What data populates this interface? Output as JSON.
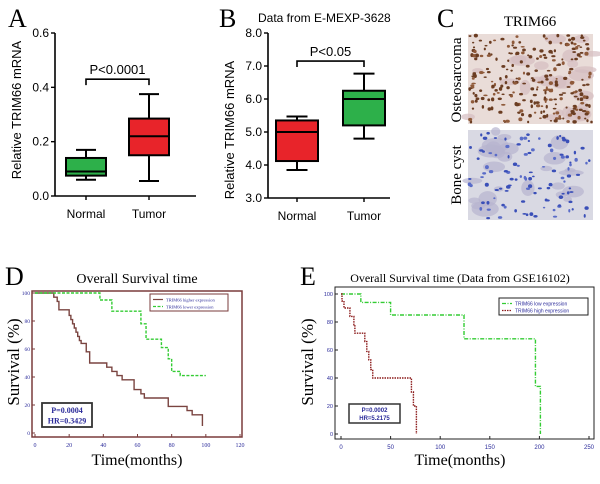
{
  "panel_labels": {
    "a": "A",
    "b": "B",
    "c": "C",
    "d": "D",
    "e": "E"
  },
  "colors": {
    "green": "#2db04a",
    "red": "#e8242a",
    "brown": "#7a4440",
    "km_green": "#33cc33",
    "km_red": "#8b1a1a",
    "km_text": "#2b2b9a",
    "frame": "#7a3b3b"
  },
  "chart_data": [
    {
      "id": "A",
      "type": "box",
      "title": "",
      "ylabel": "Relative TRIM66 mRNA",
      "ylim": [
        0,
        0.6
      ],
      "yticks": [
        "0.0",
        "0.2",
        "0.4",
        "0.6"
      ],
      "ytick_values": [
        0,
        0.2,
        0.4,
        0.6
      ],
      "categories": [
        "Normal",
        "Tumor"
      ],
      "boxes": [
        {
          "name": "Normal",
          "min": 0.06,
          "q1": 0.075,
          "median": 0.09,
          "q3": 0.14,
          "max": 0.17,
          "color": "#2db04a"
        },
        {
          "name": "Tumor",
          "min": 0.055,
          "q1": 0.15,
          "median": 0.22,
          "q3": 0.285,
          "max": 0.375,
          "color": "#e8242a"
        }
      ],
      "annotation": {
        "text": "P<0.0001",
        "y": 0.43
      }
    },
    {
      "id": "B",
      "type": "box",
      "title": "Data from E-MEXP-3628",
      "ylabel": "Relative TRIM66 mRNA",
      "ylim": [
        3.0,
        8.0
      ],
      "yticks": [
        "3.0",
        "4.0",
        "5.0",
        "6.0",
        "7.0",
        "8.0"
      ],
      "ytick_values": [
        3,
        4,
        5,
        6,
        7,
        8
      ],
      "categories": [
        "Normal",
        "Tumor"
      ],
      "boxes": [
        {
          "name": "Normal",
          "min": 3.85,
          "q1": 4.12,
          "median": 5.0,
          "q3": 5.35,
          "max": 5.47,
          "color": "#e8242a"
        },
        {
          "name": "Tumor",
          "min": 4.8,
          "q1": 5.2,
          "median": 6.0,
          "q3": 6.25,
          "max": 6.77,
          "color": "#2db04a"
        }
      ],
      "annotation": {
        "text": "P<0.05",
        "y": 7.15
      }
    },
    {
      "id": "D",
      "type": "line",
      "title": "Overall Survival time",
      "xlabel": "Time(months)",
      "ylabel": "Survival (%)",
      "xlim": [
        0,
        120
      ],
      "ylim": [
        0,
        100
      ],
      "xticks": [
        "0",
        "20",
        "40",
        "60",
        "80",
        "100",
        "120"
      ],
      "xtick_values": [
        0,
        20,
        40,
        60,
        80,
        100,
        120
      ],
      "yticks": [
        "0",
        "20",
        "40",
        "60",
        "80",
        "100"
      ],
      "ytick_values": [
        0,
        20,
        40,
        60,
        80,
        100
      ],
      "legend_position": "top-right",
      "series": [
        {
          "name": "TRIM66 higher expression",
          "style": "solid",
          "color": "#7a4440",
          "steps": [
            [
              0,
              100
            ],
            [
              11,
              97
            ],
            [
              13,
              94
            ],
            [
              14,
              88
            ],
            [
              20,
              84
            ],
            [
              21,
              81
            ],
            [
              22,
              78
            ],
            [
              23,
              75
            ],
            [
              24,
              72
            ],
            [
              25,
              69
            ],
            [
              26,
              66
            ],
            [
              27,
              64
            ],
            [
              30,
              58
            ],
            [
              32,
              50
            ],
            [
              42,
              47
            ],
            [
              45,
              44
            ],
            [
              48,
              41
            ],
            [
              51,
              38
            ],
            [
              58,
              34
            ],
            [
              58,
              31
            ],
            [
              62,
              28
            ],
            [
              64,
              25
            ],
            [
              78,
              19
            ],
            [
              89,
              16
            ],
            [
              92,
              13
            ],
            [
              98,
              5
            ]
          ]
        },
        {
          "name": "TRIM66 lower expression",
          "style": "dashed",
          "color": "#33cc33",
          "steps": [
            [
              0,
              100
            ],
            [
              38,
              95
            ],
            [
              45,
              87
            ],
            [
              62,
              78
            ],
            [
              65,
              67
            ],
            [
              74,
              61
            ],
            [
              78,
              53
            ],
            [
              80,
              44
            ],
            [
              85,
              41
            ],
            [
              100,
              41
            ]
          ]
        }
      ],
      "stats": {
        "p": "P=0.0004",
        "hr": "HR=0.3429"
      }
    },
    {
      "id": "E",
      "type": "line",
      "title": "Overall Survival time (Data from GSE16102)",
      "xlabel": "Time(months)",
      "ylabel": "Survival (%)",
      "xlim": [
        0,
        250
      ],
      "ylim": [
        0,
        100
      ],
      "xticks": [
        "0",
        "50",
        "100",
        "150",
        "200",
        "250"
      ],
      "xtick_values": [
        0,
        50,
        100,
        150,
        200,
        250
      ],
      "yticks": [
        "0",
        "20",
        "40",
        "60",
        "80",
        "100"
      ],
      "ytick_values": [
        0,
        20,
        40,
        60,
        80,
        100
      ],
      "legend_position": "top-right",
      "series": [
        {
          "name": "TRIM66 low expression",
          "style": "dashdot",
          "color": "#33cc33",
          "steps": [
            [
              0,
              100
            ],
            [
              20,
              94
            ],
            [
              50,
              85
            ],
            [
              124,
              68
            ],
            [
              196,
              34
            ],
            [
              201,
              0
            ]
          ]
        },
        {
          "name": "TRIM66 high expression",
          "style": "dotted",
          "color": "#8b1a1a",
          "steps": [
            [
              0,
              100
            ],
            [
              1,
              95
            ],
            [
              3,
              90
            ],
            [
              9,
              84
            ],
            [
              13,
              78
            ],
            [
              14,
              72
            ],
            [
              24,
              66
            ],
            [
              26,
              59
            ],
            [
              28,
              53
            ],
            [
              30,
              46
            ],
            [
              32,
              40
            ],
            [
              71,
              30
            ],
            [
              73,
              20
            ],
            [
              76,
              0
            ]
          ]
        }
      ],
      "stats": {
        "p": "P=0.0002",
        "hr": "HR=5.2175"
      }
    }
  ],
  "panel_c": {
    "title": "TRIM66",
    "rows": [
      {
        "label": "Osteosarcoma",
        "stain": "brown"
      },
      {
        "label": "Bone cyst",
        "stain": "blue"
      }
    ]
  }
}
